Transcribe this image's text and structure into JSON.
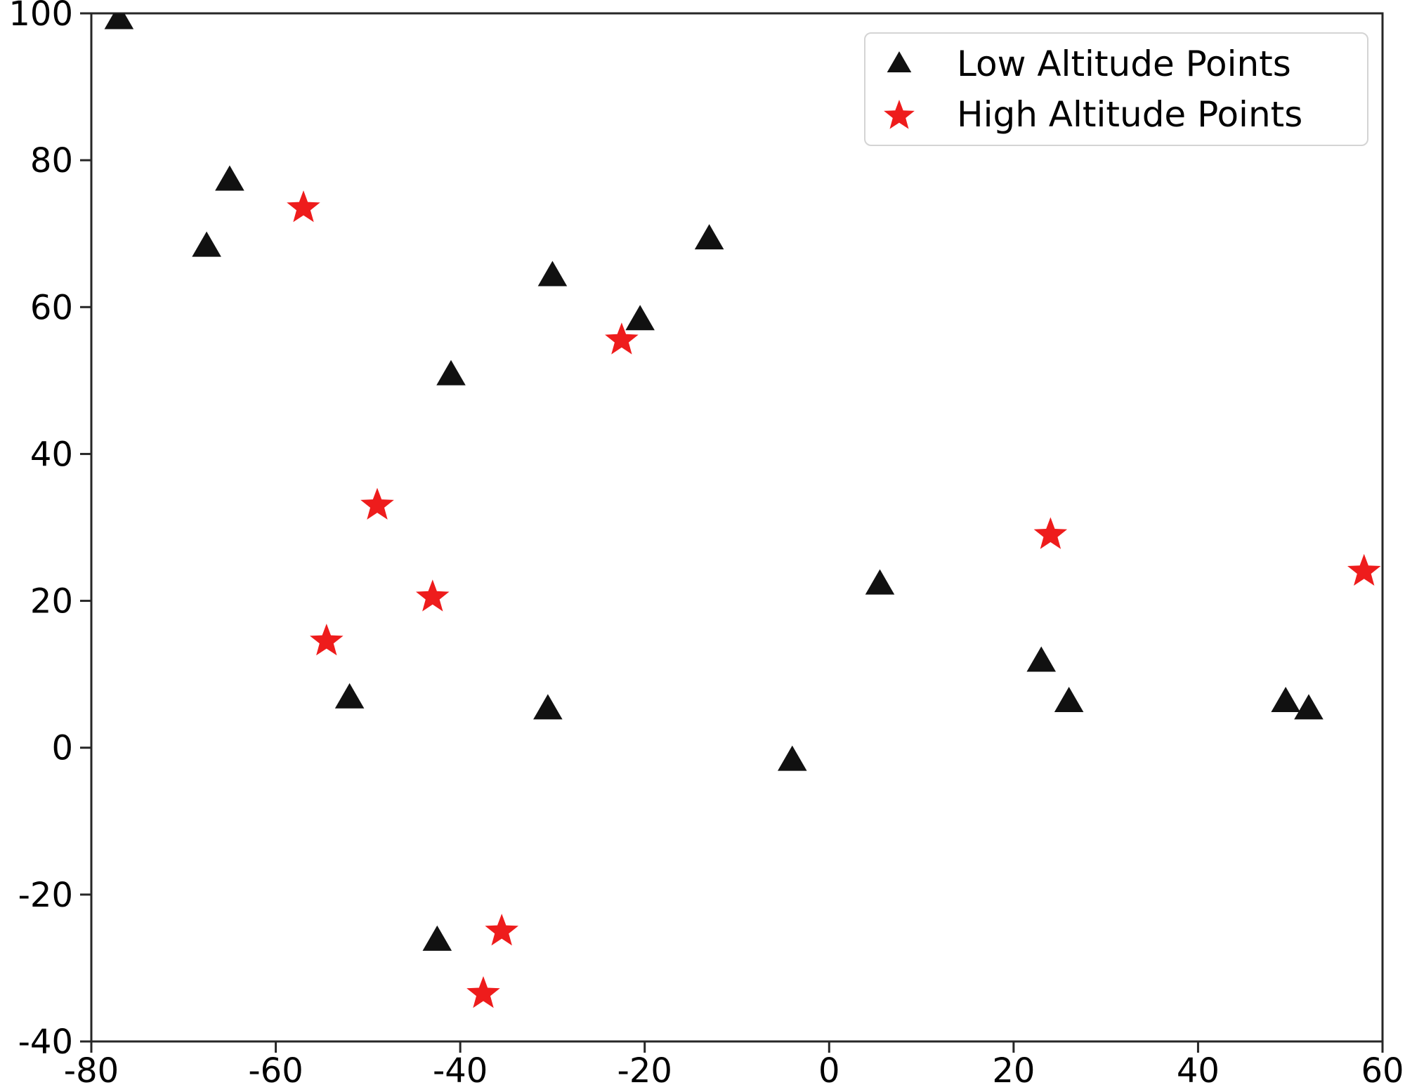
{
  "chart_data": {
    "type": "scatter",
    "title": "",
    "xlabel": "",
    "ylabel": "",
    "xlim": [
      -80,
      60
    ],
    "ylim": [
      -40,
      100
    ],
    "x_ticks": [
      -80,
      -60,
      -40,
      -20,
      0,
      20,
      40,
      60
    ],
    "y_ticks": [
      -40,
      -20,
      0,
      20,
      40,
      60,
      80,
      100
    ],
    "grid": false,
    "legend_position": "upper right",
    "styles": {
      "axis_color": "#262626",
      "background": "#ffffff",
      "low_color": "#111111",
      "high_color": "#ee1c1c"
    },
    "series": [
      {
        "name": "Low Altitude Points",
        "marker": "triangle",
        "color": "#111111",
        "points": [
          [
            -77,
            99
          ],
          [
            -65,
            77
          ],
          [
            -67.5,
            68
          ],
          [
            -30,
            64
          ],
          [
            -13,
            69
          ],
          [
            -20.5,
            58
          ],
          [
            -41,
            50.5
          ],
          [
            -52,
            6.5
          ],
          [
            -30.5,
            5
          ],
          [
            -4,
            -2
          ],
          [
            5.5,
            22
          ],
          [
            23,
            11.5
          ],
          [
            26,
            6
          ],
          [
            49.5,
            6
          ],
          [
            52,
            5
          ],
          [
            -42.5,
            -26.5
          ]
        ]
      },
      {
        "name": "High Altitude Points",
        "marker": "star",
        "color": "#ee1c1c",
        "points": [
          [
            -57,
            73.5
          ],
          [
            -22.5,
            55.5
          ],
          [
            -49,
            33
          ],
          [
            -43,
            20.5
          ],
          [
            -54.5,
            14.5
          ],
          [
            24,
            29
          ],
          [
            58,
            24
          ],
          [
            -35.5,
            -25
          ],
          [
            -37.5,
            -33.5
          ]
        ]
      }
    ]
  },
  "legend": {
    "items": [
      {
        "label": "Low Altitude Points",
        "icon": "triangle-icon",
        "color": "#111111"
      },
      {
        "label": "High Altitude Points",
        "icon": "star-icon",
        "color": "#ee1c1c"
      }
    ]
  }
}
